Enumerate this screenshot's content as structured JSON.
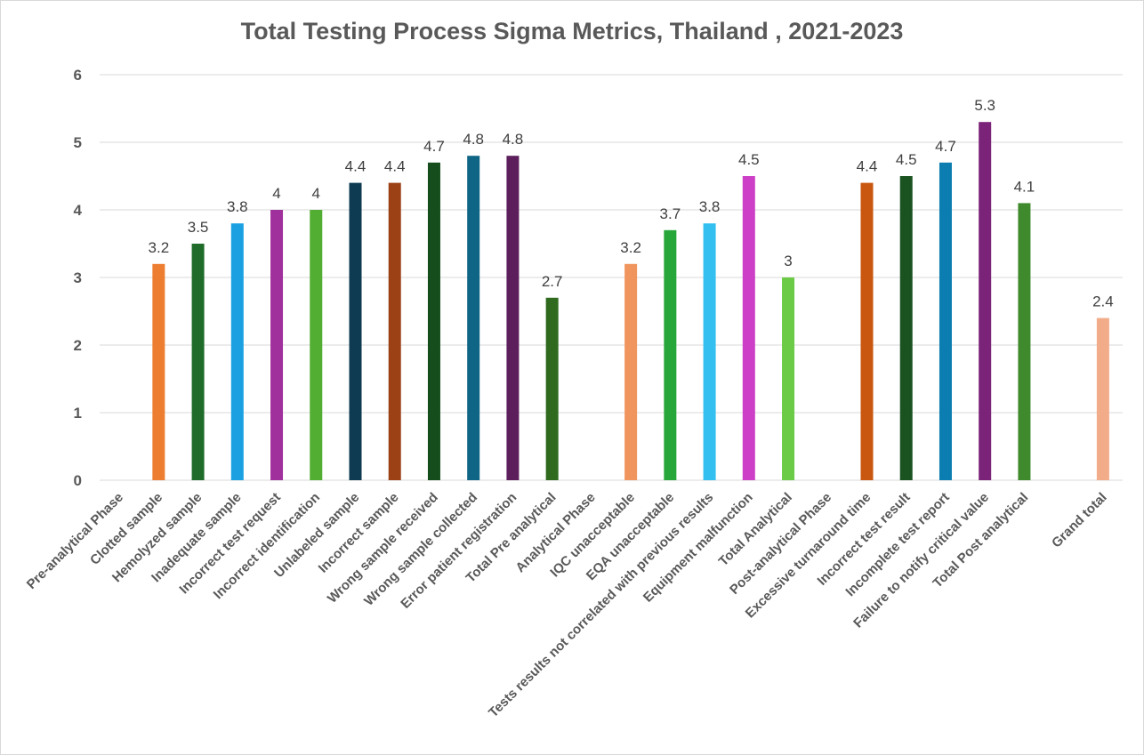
{
  "chart_data": {
    "type": "bar",
    "title": "Total Testing Process Sigma Metrics, Thailand , 2021-2023",
    "xlabel": "",
    "ylabel": "",
    "ylim": [
      0,
      6
    ],
    "yticks": [
      "0",
      "1",
      "2",
      "3",
      "4",
      "5",
      "6"
    ],
    "grid": true,
    "legend": "none",
    "categories": [
      "Pre-analytical Phase",
      "Clotted sample",
      "Hemolyzed sample",
      "Inadequate sample",
      "Incorrect test request",
      "Incorrect identification",
      "Unlabeled sample",
      "Incorrect sample",
      "Wrong sample received",
      "Wrong sample collected",
      "Error patient registration",
      "Total Pre analytical",
      "Analytical Phase",
      "IQC unacceptable",
      "EQA unacceptable",
      "Tests results not correlated with previous results",
      "Equipment malfunction",
      "Total Analytical",
      "Post-analytical Phase",
      "Excessive turnaround time",
      "Incorrect test result",
      "Incomplete test report",
      "Failure to notify critical value",
      "Total Post analytical",
      "",
      "Grand total"
    ],
    "values": [
      null,
      3.2,
      3.5,
      3.8,
      4,
      4,
      4.4,
      4.4,
      4.7,
      4.8,
      4.8,
      2.7,
      null,
      3.2,
      3.7,
      3.8,
      4.5,
      3,
      null,
      4.4,
      4.5,
      4.7,
      5.3,
      4.1,
      null,
      2.4
    ],
    "data_labels": [
      "",
      "3.2",
      "3.5",
      "3.8",
      "4",
      "4",
      "4.4",
      "4.4",
      "4.7",
      "4.8",
      "4.8",
      "2.7",
      "",
      "3.2",
      "3.7",
      "3.8",
      "4.5",
      "3",
      "",
      "4.4",
      "4.5",
      "4.7",
      "5.3",
      "4.1",
      "",
      "2.4"
    ],
    "colors": [
      "",
      "#ED7D31",
      "#1E6B2A",
      "#1BA1E2",
      "#A0309C",
      "#52AE32",
      "#0E3A52",
      "#9C4116",
      "#154D1C",
      "#0F6585",
      "#5C1F5C",
      "#2F6A1F",
      "",
      "#F0955E",
      "#27A73A",
      "#33BFF0",
      "#CC3FC6",
      "#6CCB46",
      "",
      "#C9570F",
      "#1A5220",
      "#0C7DB0",
      "#7A2378",
      "#3F8A2C",
      "",
      "#F2AC8A"
    ]
  }
}
